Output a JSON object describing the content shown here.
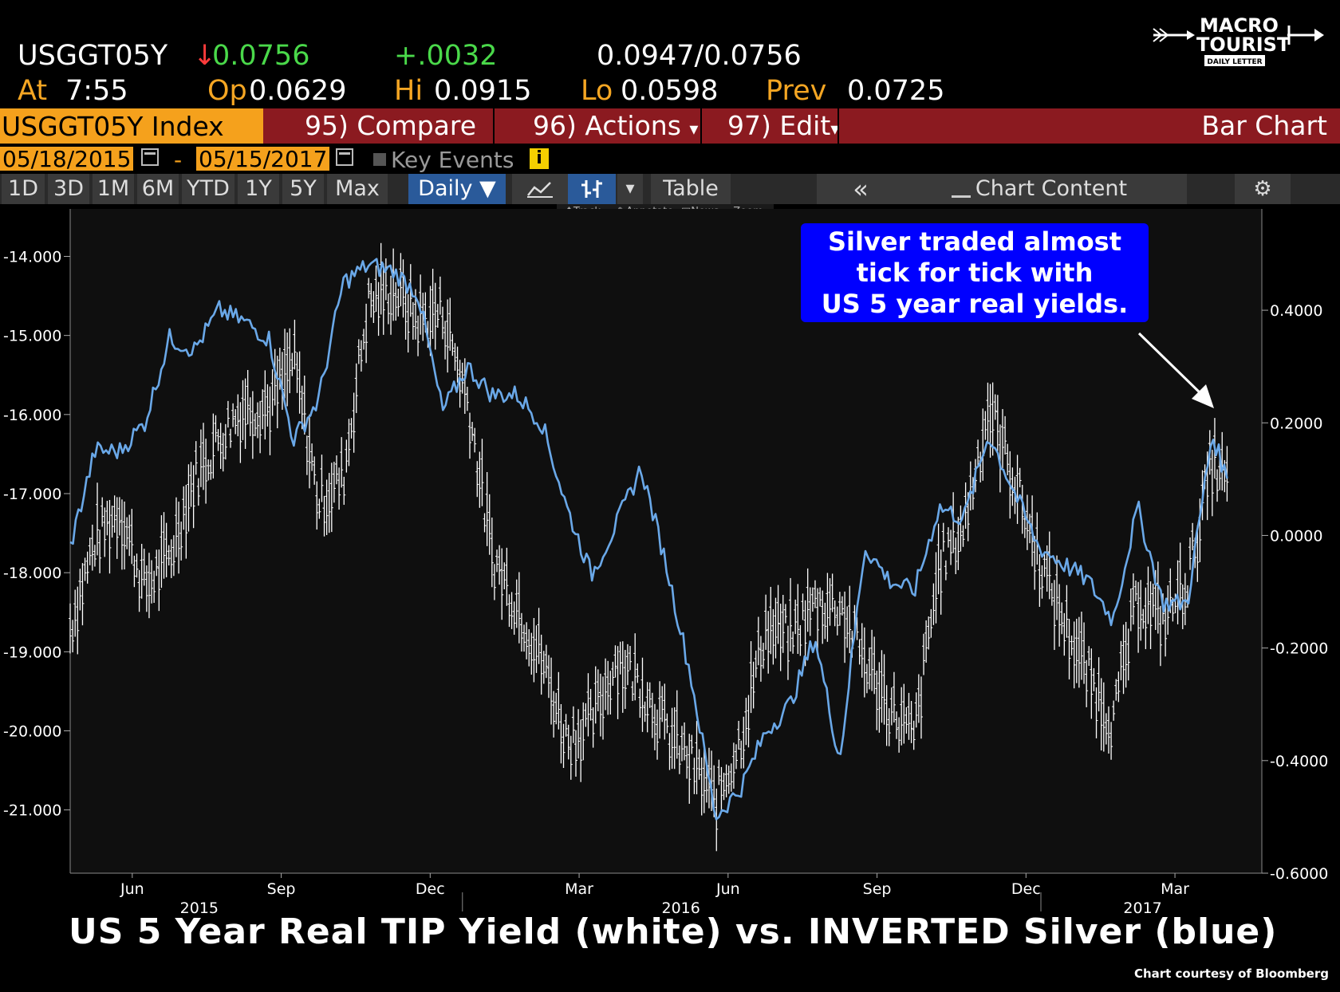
{
  "header": {
    "ticker": "USGGT05Y",
    "arrow": "↓",
    "last": "0.0756",
    "change": "+.0032",
    "bid_ask": "0.0947/0.0756",
    "at_label": "At",
    "time": "7:55",
    "op_label": "Op",
    "op": "0.0629",
    "hi_label": "Hi",
    "hi": "0.0915",
    "lo_label": "Lo",
    "lo": "0.0598",
    "prev_label": "Prev",
    "prev": "0.0725"
  },
  "toolbar": {
    "security": "USGGT05Y Index",
    "compare": "95) Compare",
    "actions": "96) Actions",
    "edit": "97) Edit",
    "chart_type": "Bar Chart",
    "caret": "▾"
  },
  "dates": {
    "start": "05/18/2015",
    "dash": "-",
    "end": "05/15/2017",
    "key_events": "Key Events",
    "info": "i"
  },
  "periods": [
    "1D",
    "3D",
    "1M",
    "6M",
    "YTD",
    "1Y",
    "5Y",
    "Max"
  ],
  "frequency": "Daily ▼",
  "table_label": "Table",
  "collapse": "«",
  "chart_content": "Chart Content",
  "subtools": [
    "Track",
    "Annotate",
    "News",
    "Zoom"
  ],
  "logo": {
    "line1": "MACRO",
    "line2": "TOURIST",
    "line3": "DAILY LETTER"
  },
  "callout": [
    "Silver traded almost",
    "tick for tick with",
    "US 5 year real yields."
  ],
  "caption": "US 5 Year Real TIP Yield (white) vs. INVERTED Silver (blue)",
  "credit": "Chart courtesy of Bloomberg",
  "colors": {
    "background": "#000000",
    "plot_bg": "#0f0f0f",
    "blue_series": "#6aa8e8",
    "white_series": "#ffffff",
    "accent_orange": "#f5a11c",
    "toolbar_red": "#8b1a20",
    "callout_blue": "#0000ff"
  },
  "chart_data": {
    "type": "line",
    "x_tick_labels": [
      "Jun",
      "Sep",
      "Dec",
      "Mar",
      "Jun",
      "Sep",
      "Dec",
      "Mar"
    ],
    "x_year_labels": [
      "2015",
      "2016",
      "2017"
    ],
    "left_axis": {
      "ylim": [
        -21.8,
        -13.4
      ],
      "ticks": [
        -14.0,
        -15.0,
        -16.0,
        -17.0,
        -18.0,
        -19.0,
        -20.0,
        -21.0
      ],
      "tick_labels": [
        "-14.000",
        "-15.000",
        "-16.000",
        "-17.000",
        "-18.000",
        "-19.000",
        "-20.000",
        "-21.000"
      ]
    },
    "right_axis": {
      "ylim": [
        -0.6,
        0.58
      ],
      "ticks": [
        0.4,
        0.2,
        0.0,
        -0.2,
        -0.4,
        -0.6
      ],
      "tick_labels": [
        "0.4000",
        "0.2000",
        "0.0000",
        "-0.2000",
        "-0.4000",
        "-0.6000"
      ]
    },
    "x_range": [
      0,
      24
    ],
    "series": [
      {
        "axis": "left",
        "style": "bar",
        "x": [
          0,
          0.5,
          1,
          1.5,
          2,
          2.5,
          3,
          3.5,
          4,
          4.5,
          5,
          5.5,
          6,
          6.5,
          7,
          7.5,
          8,
          8.5,
          9,
          9.5,
          10,
          10.5,
          11,
          11.5,
          12,
          12.5,
          13,
          13.5,
          14,
          14.5,
          15,
          15.5,
          16,
          16.5,
          17,
          17.5,
          18,
          18.5,
          19,
          19.5,
          20,
          20.5,
          21,
          21.5,
          22,
          22.5,
          23,
          23.3
        ],
        "values": [
          -18.7,
          -17.6,
          -17.2,
          -18.2,
          -17.8,
          -16.8,
          -16.3,
          -15.9,
          -15.9,
          -15.3,
          -17.1,
          -16.8,
          -14.6,
          -14.4,
          -14.8,
          -14.7,
          -15.8,
          -17.8,
          -18.4,
          -19.1,
          -20.1,
          -19.9,
          -19.1,
          -19.4,
          -20.0,
          -20.4,
          -20.9,
          -20.1,
          -18.7,
          -18.8,
          -18.4,
          -18.4,
          -19.1,
          -19.7,
          -20.1,
          -17.9,
          -17.4,
          -15.9,
          -16.8,
          -17.8,
          -18.6,
          -19.3,
          -19.9,
          -18.3,
          -18.6,
          -18.1,
          -16.6,
          -16.9
        ]
      },
      {
        "axis": "right",
        "style": "line",
        "x": [
          0,
          0.5,
          1,
          1.5,
          2,
          2.5,
          3,
          3.5,
          4,
          4.5,
          5,
          5.5,
          6,
          6.5,
          7,
          7.5,
          8,
          8.5,
          9,
          9.5,
          10,
          10.5,
          11,
          11.5,
          12,
          12.5,
          13,
          13.5,
          14,
          14.5,
          15,
          15.5,
          16,
          16.5,
          17,
          17.5,
          18,
          18.5,
          19,
          19.5,
          20,
          20.5,
          21,
          21.5,
          22,
          22.5,
          23,
          23.3
        ],
        "values": [
          -0.02,
          0.15,
          0.15,
          0.2,
          0.35,
          0.33,
          0.4,
          0.38,
          0.35,
          0.17,
          0.24,
          0.45,
          0.48,
          0.47,
          0.43,
          0.22,
          0.3,
          0.25,
          0.25,
          0.2,
          0.05,
          -0.07,
          0.02,
          0.12,
          -0.05,
          -0.25,
          -0.5,
          -0.45,
          -0.35,
          -0.3,
          -0.18,
          -0.4,
          -0.02,
          -0.08,
          -0.1,
          0.05,
          0.03,
          0.18,
          0.08,
          -0.02,
          -0.05,
          -0.08,
          -0.15,
          0.05,
          -0.12,
          -0.12,
          0.18,
          0.1
        ]
      }
    ]
  }
}
